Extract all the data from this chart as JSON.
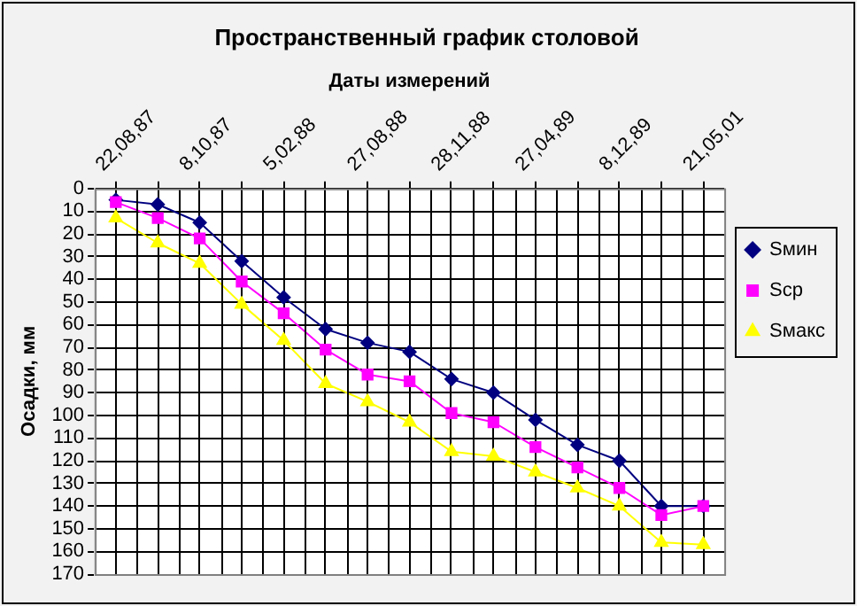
{
  "chart_data": {
    "type": "line",
    "title": "Пространственный график столовой",
    "xlabel": "Даты измерений",
    "ylabel": "Осадки, мм",
    "categories": [
      "22,08,87",
      null,
      "8,10,87",
      null,
      "5,02,88",
      null,
      "27,08,88",
      null,
      "28,11,88",
      null,
      "27,04,89",
      null,
      "8,12,89",
      null,
      "21,05,01"
    ],
    "ylim": [
      170,
      0
    ],
    "yticks": [
      0,
      10,
      20,
      30,
      40,
      50,
      60,
      70,
      80,
      90,
      100,
      110,
      120,
      130,
      140,
      150,
      160,
      170
    ],
    "grid": true,
    "legend": "right",
    "line_style": "solid",
    "series": [
      {
        "name": "Sмин",
        "color": "#000080",
        "marker": "diamond",
        "values": [
          5,
          7,
          15,
          32,
          48,
          62,
          68,
          72,
          84,
          90,
          102,
          113,
          120,
          140,
          140
        ]
      },
      {
        "name": "Sср",
        "color": "#ff00ff",
        "marker": "square",
        "values": [
          6,
          13,
          22,
          41,
          55,
          71,
          82,
          85,
          99,
          103,
          114,
          123,
          132,
          144,
          140
        ]
      },
      {
        "name": "Sмакс",
        "color": "#ffff00",
        "marker": "triangle",
        "values": [
          13,
          24,
          33,
          51,
          67,
          86,
          94,
          103,
          116,
          118,
          125,
          132,
          140,
          156,
          157
        ]
      }
    ]
  }
}
